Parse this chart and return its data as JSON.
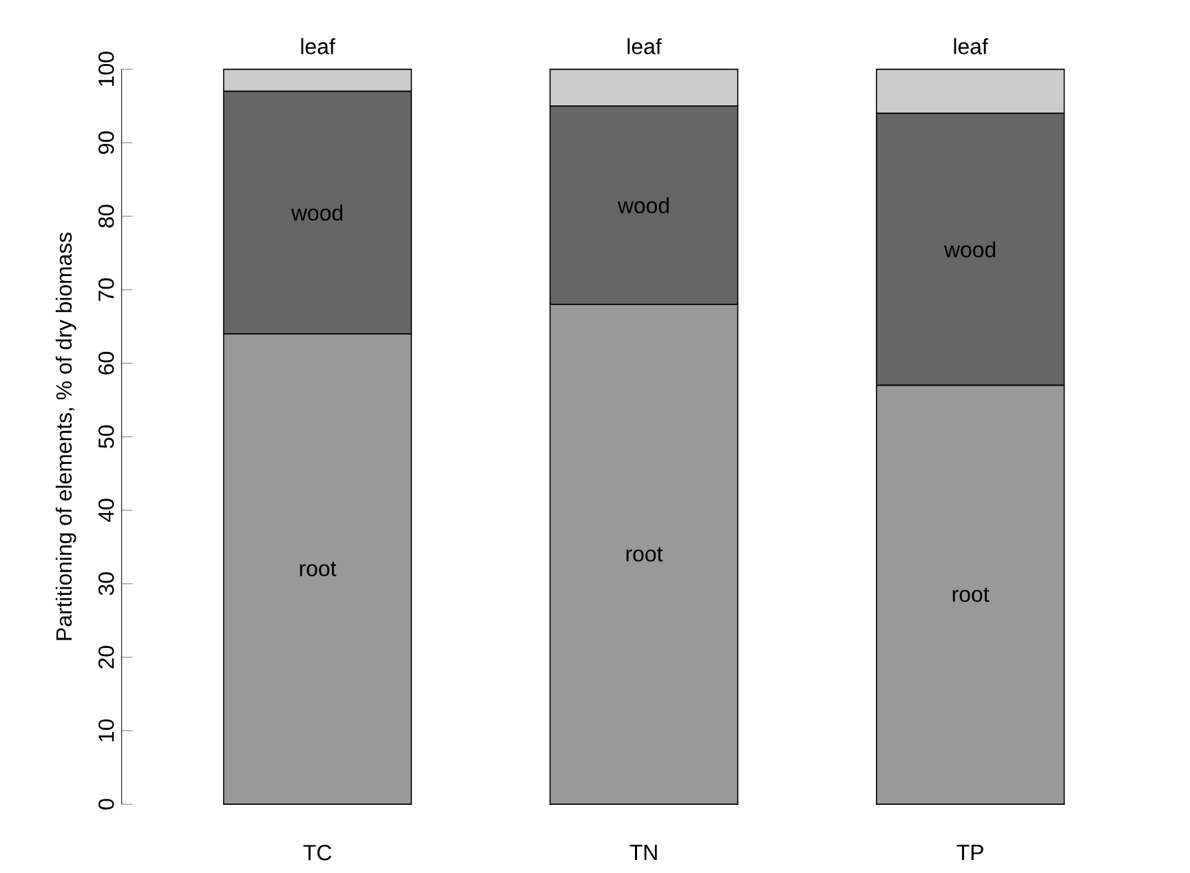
{
  "chart_data": {
    "type": "bar",
    "stacked": true,
    "ylabel": "Partitioning of elements, % of dry biomass",
    "categories": [
      "TC",
      "TN",
      "TP"
    ],
    "series": [
      {
        "name": "root",
        "color": "#999999",
        "values": [
          64,
          68,
          57
        ]
      },
      {
        "name": "wood",
        "color": "#666666",
        "values": [
          33,
          27,
          37
        ]
      },
      {
        "name": "leaf",
        "color": "#cccccc",
        "values": [
          3,
          5,
          6
        ]
      }
    ],
    "ylim": [
      0,
      100
    ],
    "yticks": [
      0,
      10,
      20,
      30,
      40,
      50,
      60,
      70,
      80,
      90,
      100
    ]
  }
}
